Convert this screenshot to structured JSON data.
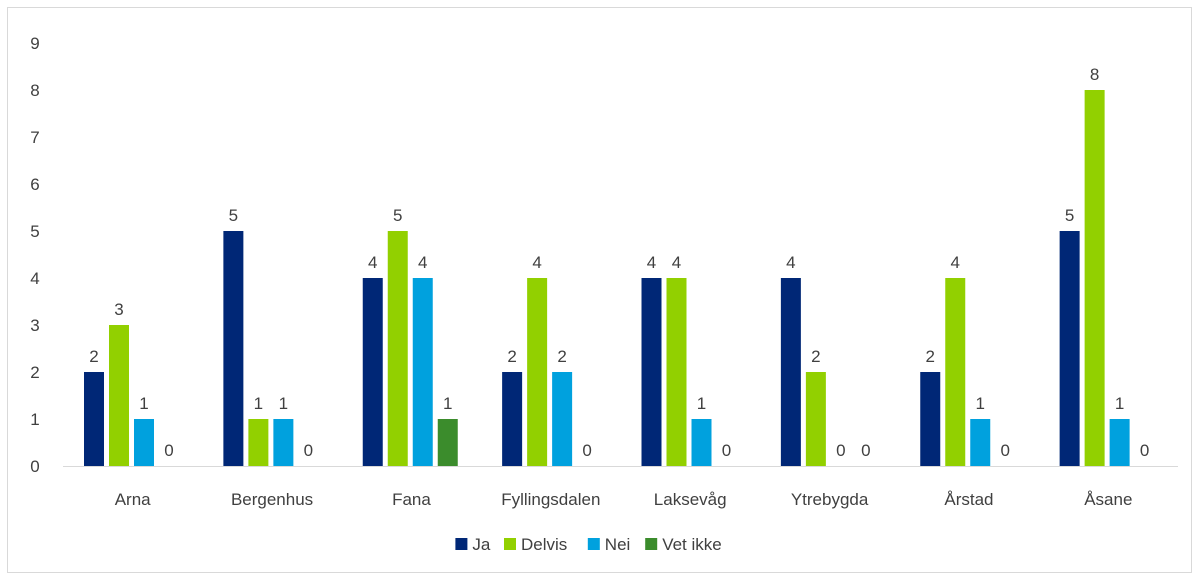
{
  "chart_data": {
    "type": "bar",
    "categories": [
      "Arna",
      "Bergenhus",
      "Fana",
      "Fyllingsdalen",
      "Laksevåg",
      "Ytrebygda",
      "Årstad",
      "Åsane"
    ],
    "series": [
      {
        "name": "Ja",
        "color": "#002776",
        "values": [
          2,
          5,
          4,
          2,
          4,
          4,
          2,
          5
        ]
      },
      {
        "name": "Delvis",
        "color": "#92d000",
        "values": [
          3,
          1,
          5,
          4,
          4,
          2,
          4,
          8
        ]
      },
      {
        "name": "Nei",
        "color": "#00a1de",
        "values": [
          1,
          1,
          4,
          2,
          1,
          0,
          1,
          1
        ]
      },
      {
        "name": "Vet ikke",
        "color": "#3b8c2c",
        "values": [
          0,
          0,
          1,
          0,
          0,
          0,
          0,
          0
        ]
      }
    ],
    "y_ticks": [
      "0",
      "1",
      "2",
      "3",
      "4",
      "5",
      "6",
      "7",
      "8",
      "9"
    ],
    "ylim": [
      0,
      9
    ],
    "grid": false,
    "legend_position": "bottom",
    "data_labels": true
  }
}
